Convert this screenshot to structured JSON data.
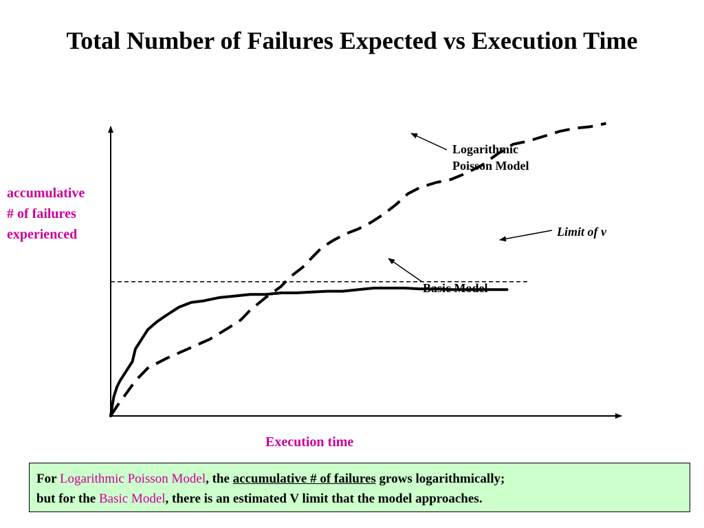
{
  "title": "Total Number of Failures Expected vs Execution Time",
  "colors": {
    "accent": "#cc0099",
    "note_bg": "#ccffcc",
    "ink": "#000000"
  },
  "chart_data": {
    "type": "line",
    "title": "Total Number of Failures Expected vs Execution Time",
    "xlabel": "Execution time",
    "ylabel": "accumulative # of failures experienced",
    "axes_ticks": false,
    "grid": false,
    "series": [
      {
        "name": "Basic Model",
        "style": "solid",
        "points": [
          [
            0,
            0
          ],
          [
            0.3,
            4
          ],
          [
            1,
            12
          ],
          [
            2,
            18
          ],
          [
            3,
            22
          ],
          [
            5,
            28
          ],
          [
            7,
            34
          ],
          [
            8,
            42
          ],
          [
            10,
            48
          ],
          [
            12,
            54
          ],
          [
            15,
            59
          ],
          [
            18,
            63
          ],
          [
            22,
            68
          ],
          [
            26,
            71
          ],
          [
            30,
            72
          ],
          [
            35,
            74
          ],
          [
            40,
            75
          ],
          [
            45,
            76
          ],
          [
            50,
            76
          ],
          [
            55,
            77
          ],
          [
            60,
            77
          ],
          [
            65,
            77.5
          ],
          [
            70,
            78
          ],
          [
            75,
            78
          ],
          [
            80,
            79
          ],
          [
            85,
            80
          ],
          [
            90,
            80
          ],
          [
            95,
            80
          ],
          [
            100,
            79.5
          ],
          [
            105,
            79.5
          ],
          [
            110,
            79
          ],
          [
            115,
            79
          ],
          [
            120,
            79
          ],
          [
            125,
            79
          ],
          [
            128,
            79
          ]
        ]
      },
      {
        "name": "Logarithmic Poisson Model",
        "style": "dashed",
        "points": [
          [
            0,
            0
          ],
          [
            2,
            6
          ],
          [
            5,
            14
          ],
          [
            8,
            22
          ],
          [
            12,
            30
          ],
          [
            18,
            36
          ],
          [
            25,
            42
          ],
          [
            32,
            48
          ],
          [
            38,
            55
          ],
          [
            42,
            60
          ],
          [
            45,
            66
          ],
          [
            50,
            74
          ],
          [
            55,
            81
          ],
          [
            58,
            87
          ],
          [
            62,
            93
          ],
          [
            65,
            99
          ],
          [
            68,
            105
          ],
          [
            72,
            110
          ],
          [
            76,
            114
          ],
          [
            80,
            117
          ],
          [
            84,
            121
          ],
          [
            88,
            126
          ],
          [
            92,
            132
          ],
          [
            96,
            139
          ],
          [
            100,
            143
          ],
          [
            105,
            146
          ],
          [
            110,
            148
          ],
          [
            115,
            152
          ],
          [
            120,
            157
          ],
          [
            125,
            164
          ],
          [
            130,
            170
          ],
          [
            135,
            172
          ],
          [
            140,
            175
          ],
          [
            145,
            178
          ],
          [
            150,
            180
          ],
          [
            155,
            181
          ],
          [
            160,
            183
          ]
        ]
      }
    ],
    "reference_lines": [
      {
        "label": "Limit of v",
        "y": 84,
        "style": "dashed"
      }
    ],
    "xlim": [
      0,
      165
    ],
    "ylim": [
      0,
      200
    ],
    "annotations": [
      {
        "text": "Logarithmic Poisson Model",
        "target_series": "Logarithmic Poisson Model",
        "at": [
          125,
          164
        ]
      },
      {
        "text": "Limit of v",
        "target": "reference_line",
        "at": [
          140,
          84
        ]
      },
      {
        "text": "Basic Model",
        "target_series": "Basic Model",
        "at": [
          100,
          79.5
        ]
      }
    ]
  },
  "labels": {
    "ylabel": [
      "accumulative",
      "# of failures",
      "experienced"
    ],
    "xlabel": "Execution time",
    "annot_log": [
      "Logarithmic",
      "Poisson Model"
    ],
    "annot_limit": "Limit of v",
    "annot_basic": "Basic Model"
  },
  "note": {
    "p1": "For ",
    "k1": "Logarithmic Poisson Model",
    "p2": ", the ",
    "k2": "accumulative # of failures",
    "p3": " grows logarithmically;",
    "p4": "but for the ",
    "k3": "Basic Model",
    "p5": ", there is an estimated V limit that the model approaches."
  }
}
